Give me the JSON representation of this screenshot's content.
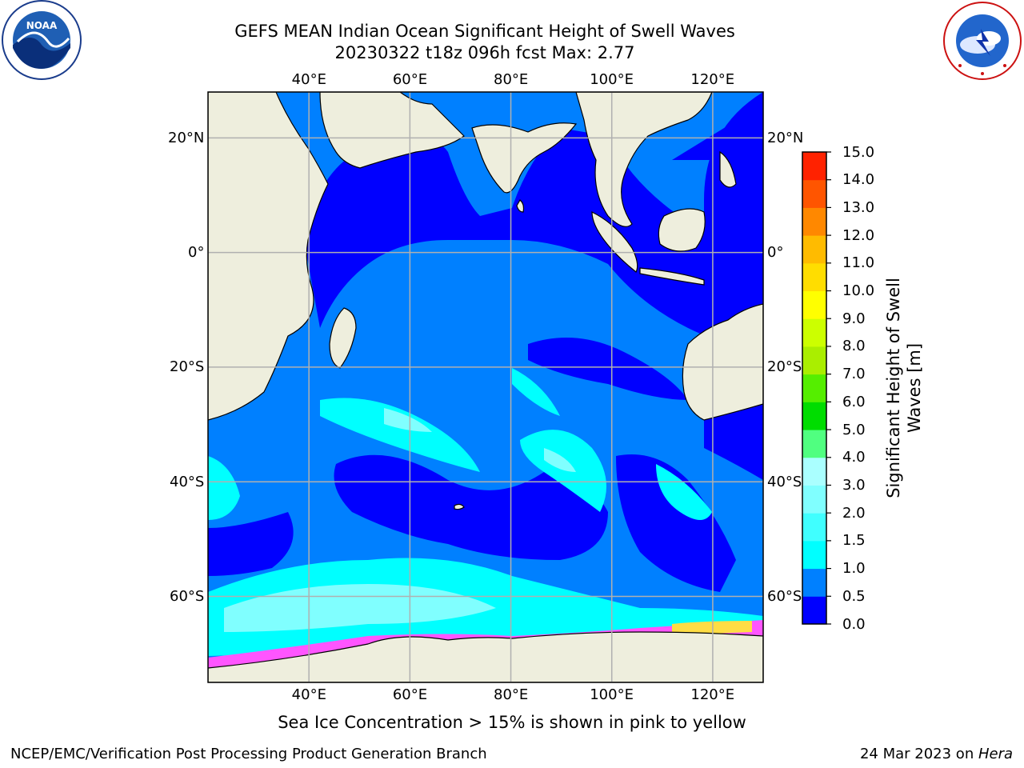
{
  "title": {
    "line1": "GEFS MEAN Indian Ocean Significant Height of Swell Waves",
    "line2": "20230322 t18z 096h fcst   Max: 2.77"
  },
  "logos": {
    "left": {
      "text": "NOAA",
      "ring_text": "NATIONAL OCEANIC AND ATMOSPHERIC ADMINISTRATION · U.S. DEPARTMENT OF COMMERCE",
      "icon": "noaa-logo-icon"
    },
    "right": {
      "ring_text": "NATIONAL WEATHER SERVICE",
      "icon": "nws-logo-icon"
    }
  },
  "map": {
    "lon_range": [
      20,
      130
    ],
    "lat_range": [
      -75,
      28
    ],
    "grid_lons": [
      40,
      60,
      80,
      100,
      120
    ],
    "grid_lats": [
      20,
      0,
      -20,
      -40,
      -60
    ],
    "lon_labels": [
      "40°E",
      "60°E",
      "80°E",
      "100°E",
      "120°E"
    ],
    "lat_labels_left": [
      "20°N",
      "0°",
      "20°S",
      "40°S",
      "60°S"
    ],
    "lat_labels_right": [
      "20°N",
      "0°",
      "20°S",
      "40°S",
      "60°S"
    ],
    "colors": {
      "land": "#eeeedd",
      "grid": "#b0b0b0",
      "ice": "#ff55ff"
    }
  },
  "colorbar": {
    "ticks": [
      "0.0",
      "0.5",
      "1.0",
      "1.5",
      "2.0",
      "3.0",
      "4.0",
      "5.0",
      "6.0",
      "7.0",
      "8.0",
      "9.0",
      "10.0",
      "11.0",
      "12.0",
      "13.0",
      "14.0",
      "15.0"
    ],
    "colors": [
      "#0000ff",
      "#0080ff",
      "#00ffff",
      "#40ffff",
      "#80ffff",
      "#aaffff",
      "#50ff80",
      "#00dd00",
      "#55ee00",
      "#aaee00",
      "#ccff00",
      "#ffff00",
      "#ffdd00",
      "#ffbb00",
      "#ff8800",
      "#ff5500",
      "#ff2200",
      "#ff0000"
    ],
    "title_line1": "Significant Height of Swell",
    "title_line2": "Waves [m]"
  },
  "ice_note": "Sea Ice Concentration > 15% is shown in pink to yellow",
  "footer": {
    "left": "NCEP/EMC/Verification Post Processing Product Generation Branch",
    "right_prefix": "24 Mar 2023 on ",
    "right_host": "Hera"
  }
}
